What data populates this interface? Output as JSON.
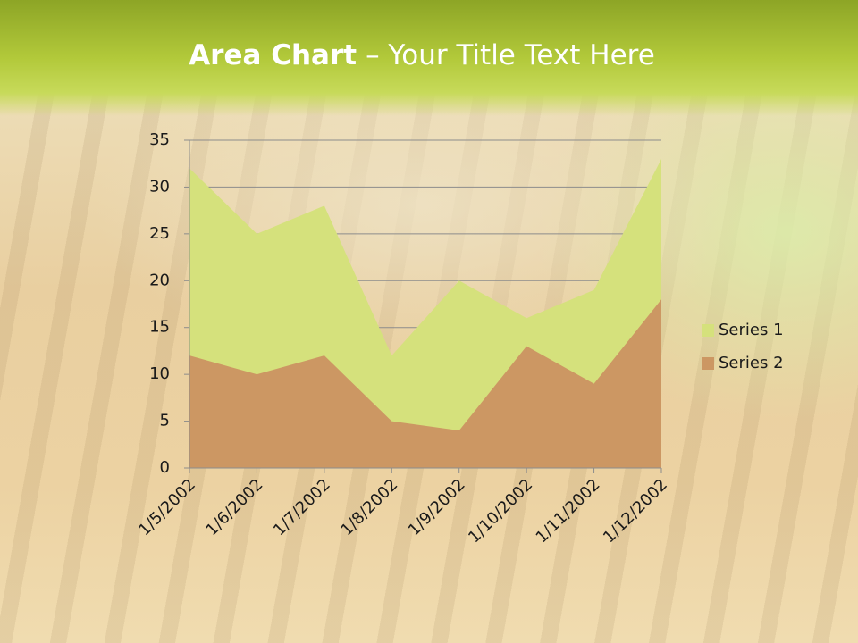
{
  "chart_data": {
    "type": "area",
    "title": [
      "Area Chart",
      "– Your Title Text Here"
    ],
    "categories": [
      "1/5/2002",
      "1/6/2002",
      "1/7/2002",
      "1/8/2002",
      "1/9/2002",
      "1/10/2002",
      "1/11/2002",
      "1/12/2002"
    ],
    "series": [
      {
        "name": "Series 1",
        "color": "#d5e17c",
        "values": [
          32,
          25,
          28,
          12,
          20,
          16,
          19,
          33
        ]
      },
      {
        "name": "Series 2",
        "color": "#cc9763",
        "values": [
          12,
          10,
          12,
          5,
          4,
          13,
          9,
          18
        ]
      }
    ],
    "ylim": [
      0,
      35
    ],
    "yticks": [
      0,
      5,
      10,
      15,
      20,
      25,
      30,
      35
    ],
    "grid": true,
    "legend": "right"
  }
}
